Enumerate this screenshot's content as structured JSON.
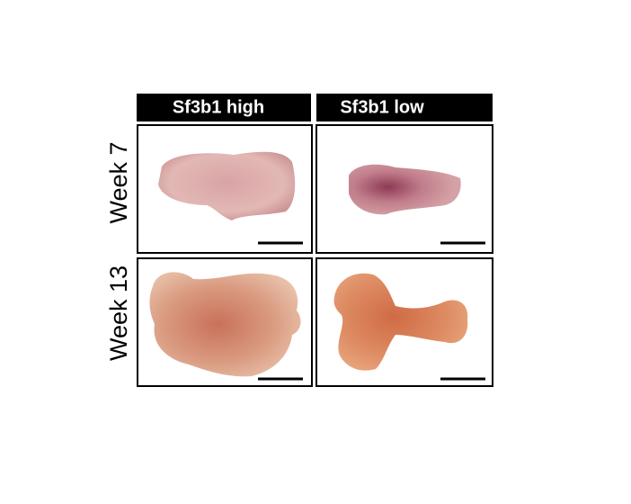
{
  "columns": [
    "Sf3b1 high",
    "Sf3b1 low"
  ],
  "rows": [
    "Week 7",
    "Week 13"
  ]
}
